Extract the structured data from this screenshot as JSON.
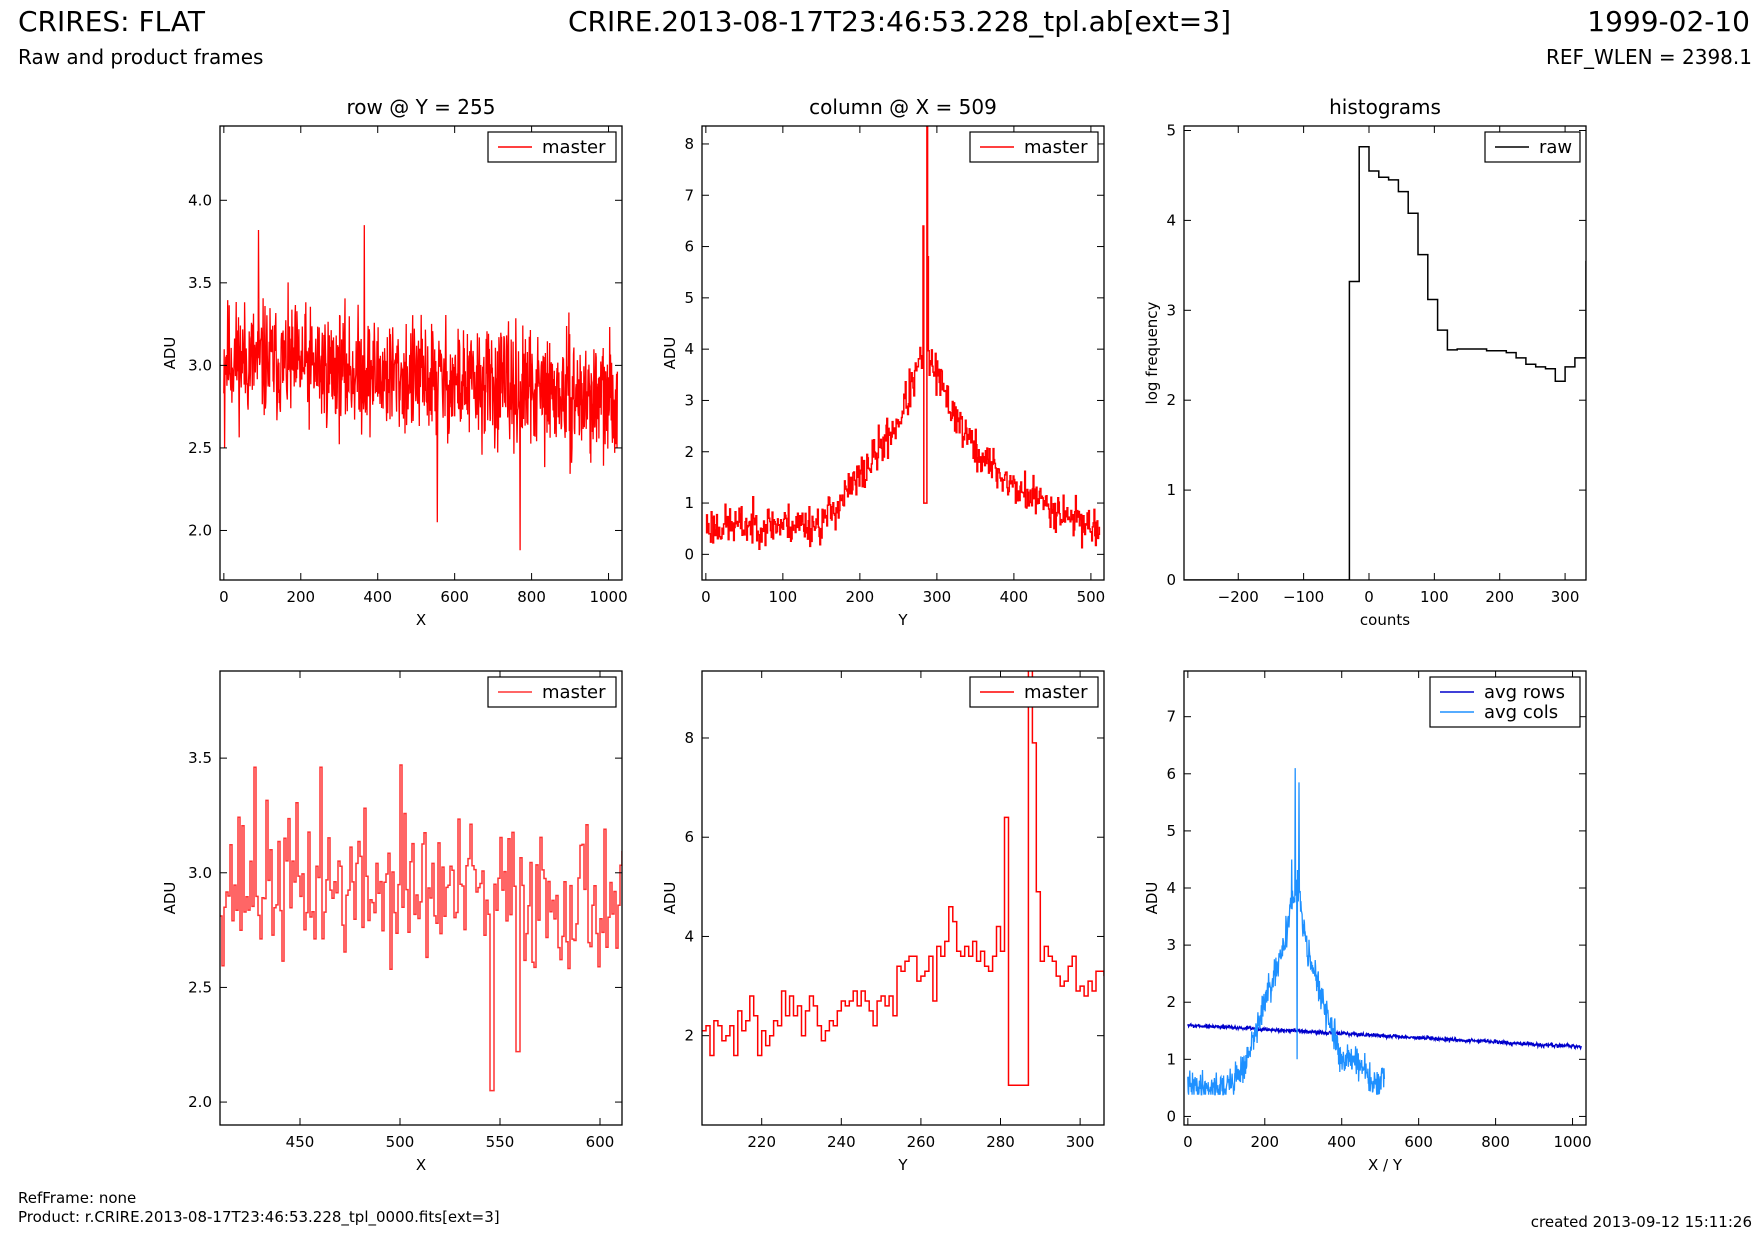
{
  "header": {
    "app_title": "CRIRES: FLAT",
    "subtitle": "Raw and product frames",
    "file_title": "CRIRE.2013-08-17T23:46:53.228_tpl.ab[ext=3]",
    "date": "1999-02-10",
    "ref_wlen": "REF_WLEN = 2398.1"
  },
  "footer": {
    "ref_frame": "RefFrame: none",
    "product": "Product: r.CRIRE.2013-08-17T23:46:53.228_tpl_0000.fits[ext=3]",
    "created": "created 2013-09-12 15:11:26"
  },
  "colors": {
    "master": "#ff0000",
    "master_light": "#ff3333",
    "raw": "#000000",
    "avg_rows": "#0000cc",
    "avg_cols": "#1e90ff"
  },
  "chart_data": [
    {
      "id": "row-full",
      "type": "line",
      "title": "row @ Y = 255",
      "xlabel": "X",
      "ylabel": "ADU",
      "xlim": [
        -10,
        1035
      ],
      "ylim": [
        1.7,
        4.45
      ],
      "xticks": [
        0,
        200,
        400,
        600,
        800,
        1000
      ],
      "xtick_labels": [
        "0",
        "200",
        "400",
        "600",
        "800",
        "1000"
      ],
      "yticks": [
        2.0,
        2.5,
        3.0,
        3.5,
        4.0
      ],
      "ytick_labels": [
        "2.0",
        "2.5",
        "3.0",
        "3.5",
        "4.0"
      ],
      "legend": {
        "position": "top-right"
      },
      "series": [
        {
          "name": "master",
          "color": "#ff0000",
          "step": false,
          "generator": "noise",
          "n": 1024,
          "x0": 0,
          "dx": 1,
          "base": [
            [
              0,
              3.05
            ],
            [
              500,
              2.92
            ],
            [
              1024,
              2.78
            ]
          ],
          "amp": 0.28,
          "seed": 11,
          "clip": [
            1.9,
            3.85
          ],
          "spikes": [
            [
              2,
              2.5
            ],
            [
              90,
              3.82
            ],
            [
              365,
              3.85
            ],
            [
              555,
              2.05
            ],
            [
              770,
              1.88
            ],
            [
              1022,
              2.5
            ]
          ]
        }
      ]
    },
    {
      "id": "col-full",
      "type": "line",
      "title": "column @ X = 509",
      "xlabel": "Y",
      "ylabel": "ADU",
      "xlim": [
        -5,
        517
      ],
      "ylim": [
        -0.5,
        8.35
      ],
      "xticks": [
        0,
        100,
        200,
        300,
        400,
        500
      ],
      "xtick_labels": [
        "0",
        "100",
        "200",
        "300",
        "400",
        "500"
      ],
      "yticks": [
        0,
        1,
        2,
        3,
        4,
        5,
        6,
        7,
        8
      ],
      "ytick_labels": [
        "0",
        "1",
        "2",
        "3",
        "4",
        "5",
        "6",
        "7",
        "8"
      ],
      "legend": {
        "position": "top-right"
      },
      "series": [
        {
          "name": "master",
          "color": "#ff0000",
          "step": true,
          "generator": "noise",
          "n": 512,
          "x0": 0,
          "dx": 1,
          "base": [
            [
              0,
              0.55
            ],
            [
              150,
              0.6
            ],
            [
              200,
              1.5
            ],
            [
              250,
              2.6
            ],
            [
              285,
              4.0
            ],
            [
              310,
              3.1
            ],
            [
              350,
              2.0
            ],
            [
              400,
              1.3
            ],
            [
              512,
              0.45
            ]
          ],
          "amp": 0.32,
          "seed": 23,
          "clip": [
            0.1,
            6.4
          ],
          "spikes": [
            [
              282,
              6.4
            ],
            [
              283,
              1.0
            ],
            [
              284,
              1.0
            ],
            [
              285,
              1.0
            ],
            [
              286,
              1.0
            ],
            [
              287,
              8.6
            ],
            [
              288,
              5.8
            ]
          ]
        }
      ]
    },
    {
      "id": "hist",
      "type": "line",
      "title": "histograms",
      "xlabel": "counts",
      "ylabel": "log frequency",
      "xlim": [
        -283,
        332
      ],
      "ylim": [
        0,
        5.05
      ],
      "xticks": [
        -200,
        -100,
        0,
        100,
        200,
        300
      ],
      "xtick_labels": [
        "−200",
        "−100",
        "0",
        "100",
        "200",
        "300"
      ],
      "yticks": [
        0,
        1,
        2,
        3,
        4,
        5
      ],
      "ytick_labels": [
        "0",
        "1",
        "2",
        "3",
        "4",
        "5"
      ],
      "legend": {
        "position": "top-right"
      },
      "series": [
        {
          "name": "raw",
          "color": "#000000",
          "step": true,
          "x": [
            -283,
            -30,
            -30,
            -15,
            0,
            15,
            30,
            45,
            60,
            75,
            90,
            105,
            120,
            135,
            150,
            165,
            180,
            195,
            210,
            225,
            240,
            255,
            270,
            285,
            300,
            315,
            332
          ],
          "y": [
            0,
            0,
            3.32,
            4.82,
            4.55,
            4.48,
            4.45,
            4.32,
            4.08,
            3.62,
            3.12,
            2.78,
            2.56,
            2.57,
            2.57,
            2.57,
            2.55,
            2.55,
            2.53,
            2.47,
            2.4,
            2.37,
            2.35,
            2.21,
            2.37,
            2.47,
            3.55
          ]
        }
      ]
    },
    {
      "id": "row-zoom",
      "type": "line",
      "title": "",
      "xlabel": "X",
      "ylabel": "ADU",
      "xlim": [
        410,
        611
      ],
      "ylim": [
        1.9,
        3.88
      ],
      "xticks": [
        450,
        500,
        550,
        600
      ],
      "xtick_labels": [
        "450",
        "500",
        "550",
        "600"
      ],
      "yticks": [
        2.0,
        2.5,
        3.0,
        3.5
      ],
      "ytick_labels": [
        "2.0",
        "2.5",
        "3.0",
        "3.5"
      ],
      "legend": {
        "position": "top-right"
      },
      "series": [
        {
          "name": "master",
          "color": "#ff3333",
          "step": true,
          "generator": "noise",
          "n": 202,
          "x0": 410,
          "dx": 1,
          "base": [
            [
              410,
              2.96
            ],
            [
              611,
              2.88
            ]
          ],
          "amp": 0.26,
          "seed": 37,
          "clip": [
            2.05,
            3.48
          ],
          "spikes": [
            [
              545,
              2.05
            ],
            [
              546,
              2.05
            ],
            [
              558,
              2.22
            ],
            [
              559,
              2.22
            ],
            [
              500,
              3.47
            ],
            [
              460,
              3.46
            ],
            [
              427,
              3.46
            ]
          ]
        }
      ]
    },
    {
      "id": "col-zoom",
      "type": "line",
      "title": "",
      "xlabel": "Y",
      "ylabel": "ADU",
      "xlim": [
        205,
        306
      ],
      "ylim": [
        0.2,
        9.35
      ],
      "xticks": [
        220,
        240,
        260,
        280,
        300
      ],
      "xtick_labels": [
        "220",
        "240",
        "260",
        "280",
        "300"
      ],
      "yticks": [
        2,
        4,
        6,
        8
      ],
      "ytick_labels": [
        "2",
        "4",
        "6",
        "8"
      ],
      "legend": {
        "position": "top-right"
      },
      "series": [
        {
          "name": "master",
          "color": "#ff0000",
          "step": true,
          "x": [
            205,
            206,
            207,
            208,
            209,
            210,
            211,
            212,
            213,
            214,
            215,
            216,
            217,
            218,
            219,
            220,
            221,
            222,
            223,
            224,
            225,
            226,
            227,
            228,
            229,
            230,
            231,
            232,
            233,
            234,
            235,
            236,
            237,
            238,
            239,
            240,
            241,
            242,
            243,
            244,
            245,
            246,
            247,
            248,
            249,
            250,
            251,
            252,
            253,
            254,
            255,
            256,
            257,
            258,
            259,
            260,
            261,
            262,
            263,
            264,
            265,
            266,
            267,
            268,
            269,
            270,
            271,
            272,
            273,
            274,
            275,
            276,
            277,
            278,
            279,
            280,
            281,
            282,
            283,
            284,
            285,
            286,
            287,
            288,
            289,
            290,
            291,
            292,
            293,
            294,
            295,
            296,
            297,
            298,
            299,
            300,
            301,
            302,
            303,
            304,
            305,
            306
          ],
          "y": [
            2.1,
            2.2,
            1.6,
            2.3,
            2.2,
            1.9,
            2.0,
            2.2,
            1.6,
            2.5,
            2.1,
            2.3,
            2.8,
            2.4,
            1.6,
            2.1,
            1.8,
            2.0,
            2.3,
            2.2,
            2.9,
            2.4,
            2.8,
            2.4,
            2.6,
            2.0,
            2.5,
            2.8,
            2.6,
            2.2,
            1.9,
            2.1,
            2.3,
            2.2,
            2.5,
            2.7,
            2.6,
            2.7,
            2.9,
            2.6,
            2.9,
            2.7,
            2.5,
            2.2,
            2.7,
            2.8,
            2.6,
            2.8,
            2.4,
            3.4,
            3.3,
            3.5,
            3.6,
            3.6,
            3.1,
            3.2,
            3.3,
            3.6,
            2.7,
            3.8,
            3.6,
            3.9,
            4.6,
            4.3,
            3.7,
            3.6,
            3.8,
            3.6,
            3.9,
            3.5,
            3.7,
            3.4,
            3.3,
            3.6,
            4.2,
            3.7,
            6.4,
            1.0,
            1.0,
            1.0,
            1.0,
            1.0,
            9.5,
            7.9,
            4.9,
            3.5,
            3.8,
            3.6,
            3.5,
            3.2,
            3.0,
            3.1,
            3.4,
            3.6,
            2.9,
            3.0,
            2.8,
            3.1,
            2.9,
            3.3,
            3.3,
            3.2
          ]
        }
      ]
    },
    {
      "id": "avg",
      "type": "line",
      "title": "",
      "xlabel": "X / Y",
      "ylabel": "ADU",
      "xlim": [
        -10,
        1035
      ],
      "ylim": [
        -0.15,
        7.8
      ],
      "xticks": [
        0,
        200,
        400,
        600,
        800,
        1000
      ],
      "xtick_labels": [
        "0",
        "200",
        "400",
        "600",
        "800",
        "1000"
      ],
      "yticks": [
        0,
        1,
        2,
        3,
        4,
        5,
        6,
        7
      ],
      "ytick_labels": [
        "0",
        "1",
        "2",
        "3",
        "4",
        "5",
        "6",
        "7"
      ],
      "legend": {
        "position": "top-right"
      },
      "series": [
        {
          "name": "avg rows",
          "color": "#0000cc",
          "step": false,
          "generator": "noise",
          "n": 1024,
          "x0": 0,
          "dx": 1,
          "base": [
            [
              0,
              1.6
            ],
            [
              1024,
              1.22
            ]
          ],
          "amp": 0.03,
          "seed": 5,
          "clip": [
            0,
            8
          ]
        },
        {
          "name": "avg cols",
          "color": "#1e90ff",
          "step": false,
          "generator": "noise",
          "n": 512,
          "x0": 0,
          "dx": 1,
          "base": [
            [
              0,
              0.52
            ],
            [
              100,
              0.5
            ],
            [
              150,
              0.9
            ],
            [
              200,
              2.0
            ],
            [
              240,
              2.7
            ],
            [
              265,
              3.6
            ],
            [
              285,
              4.0
            ],
            [
              310,
              3.0
            ],
            [
              350,
              2.0
            ],
            [
              400,
              1.0
            ],
            [
              440,
              1.0
            ],
            [
              480,
              0.55
            ],
            [
              512,
              0.6
            ]
          ],
          "amp": 0.22,
          "seed": 41,
          "clip": [
            0.38,
            6.1
          ],
          "spikes": [
            [
              270,
              4.5
            ],
            [
              279,
              6.1
            ],
            [
              284,
              1.0
            ],
            [
              289,
              5.85
            ]
          ]
        }
      ]
    }
  ]
}
